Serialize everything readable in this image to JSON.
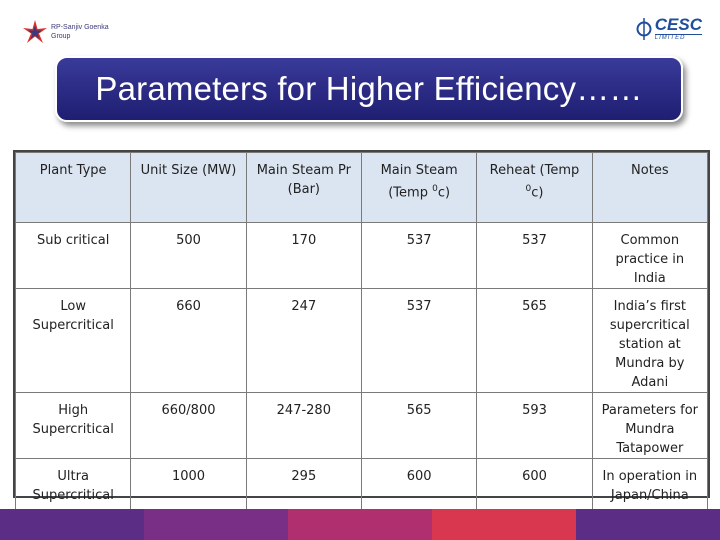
{
  "logos": {
    "left": {
      "line1": "RP-Sanjiv Goenka",
      "line2": "Group",
      "color": "#d9302a"
    },
    "right": {
      "name": "CESC",
      "sub": "LIMITED",
      "color": "#1f4e9b"
    }
  },
  "title": "Parameters for Higher Efficiency……",
  "table": {
    "headers": [
      {
        "text": "Plant Type"
      },
      {
        "text": "Unit Size (MW)"
      },
      {
        "text": "Main  Steam Pr (Bar)"
      },
      {
        "pre": "Main Steam (Temp ",
        "sup": "0",
        "post": "c)"
      },
      {
        "pre": "Reheat (Temp ",
        "sup": "0",
        "post": "c)"
      },
      {
        "text": "Notes"
      }
    ],
    "rows": [
      [
        "Sub critical",
        "500",
        "170",
        "537",
        "537",
        "Common practice in India"
      ],
      [
        "Low Supercritical",
        "660",
        "247",
        "537",
        "565",
        "India’s first supercritical station at Mundra by Adani"
      ],
      [
        "High Supercritical",
        "660/800",
        "247-280",
        "565",
        "593",
        "Parameters for Mundra Tatapower"
      ],
      [
        "Ultra Supercritical",
        "1000",
        "295",
        "600",
        "600",
        "In operation in Japan/China"
      ]
    ]
  },
  "colors": {
    "title_bg": "#2a2a85",
    "header_bg": "#dbe5f1",
    "band": [
      "#5b2d84",
      "#7a2f86",
      "#b0306f",
      "#d8374f",
      "#5b2d84"
    ]
  }
}
